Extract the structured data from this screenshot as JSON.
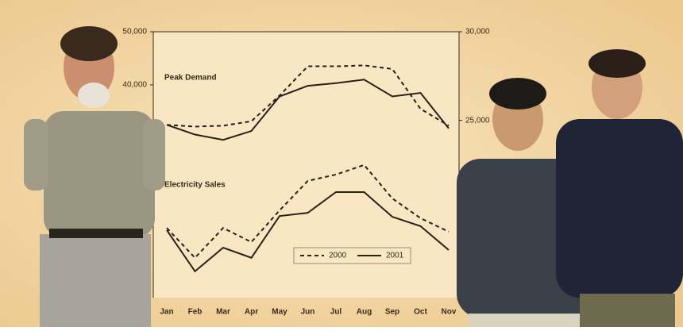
{
  "chart_data": {
    "type": "line",
    "categories": [
      "Jan",
      "Feb",
      "Mar",
      "Apr",
      "May",
      "Jun",
      "Jul",
      "Aug",
      "Sep",
      "Oct",
      "Nov"
    ],
    "ylim": [
      0,
      50000
    ],
    "yticks": [
      {
        "value": 40000,
        "label": "40,000"
      },
      {
        "value": 50000,
        "label": "50,000"
      }
    ],
    "y2lim": [
      15000,
      30000
    ],
    "y2ticks": [
      {
        "value": 25000,
        "label": "25,000"
      },
      {
        "value": 30000,
        "label": "30,000"
      }
    ],
    "legend": [
      {
        "name": "2000",
        "dashed": true
      },
      {
        "name": "2001",
        "dashed": false
      }
    ],
    "color": "#2a2018",
    "groups": [
      {
        "label": "Peak Demand",
        "axis": "y2",
        "series": [
          [
            24750,
            24650,
            24700,
            24950,
            26400,
            28050,
            28050,
            28100,
            27900,
            25650,
            24700
          ],
          [
            24750,
            24200,
            23900,
            24400,
            26350,
            26950,
            27100,
            27300,
            26350,
            26550,
            24550
          ]
        ]
      },
      {
        "label": "Electricity Sales",
        "axis": "y",
        "series": [
          [
            13100,
            7500,
            13100,
            10450,
            16400,
            21950,
            23150,
            24950,
            18650,
            14950,
            12400
          ],
          [
            12700,
            4950,
            9400,
            7500,
            15350,
            15950,
            19850,
            19850,
            15200,
            13450,
            8950
          ]
        ]
      }
    ]
  }
}
